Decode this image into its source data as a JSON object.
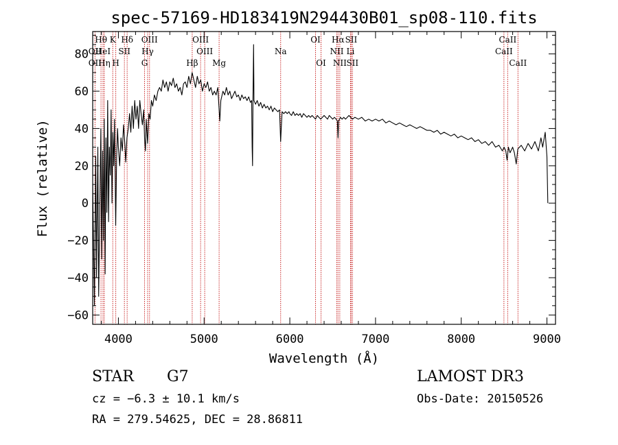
{
  "chart_data": {
    "type": "line",
    "title": "spec-57169-HD183419N294430B01_sp08-110.fits",
    "xlabel": "Wavelength (Å)",
    "ylabel": "Flux (relative)",
    "xlim": [
      3700,
      9100
    ],
    "ylim": [
      -65,
      92
    ],
    "xticks": [
      4000,
      5000,
      6000,
      7000,
      8000,
      9000
    ],
    "yticks": [
      -60,
      -40,
      -20,
      0,
      20,
      40,
      60,
      80
    ],
    "x_minor_step": 200,
    "y_minor_step": 5,
    "line_color": "#000000",
    "marker_color": "#c00000",
    "series": [
      {
        "name": "flux",
        "points": [
          [
            3700,
            10
          ],
          [
            3720,
            -55
          ],
          [
            3735,
            25
          ],
          [
            3745,
            -40
          ],
          [
            3760,
            30
          ],
          [
            3770,
            -50
          ],
          [
            3785,
            5
          ],
          [
            3795,
            40
          ],
          [
            3805,
            -30
          ],
          [
            3815,
            28
          ],
          [
            3825,
            -20
          ],
          [
            3835,
            45
          ],
          [
            3845,
            -38
          ],
          [
            3855,
            35
          ],
          [
            3865,
            -5
          ],
          [
            3875,
            55
          ],
          [
            3885,
            -10
          ],
          [
            3895,
            30
          ],
          [
            3905,
            15
          ],
          [
            3915,
            50
          ],
          [
            3925,
            0
          ],
          [
            3935,
            38
          ],
          [
            3945,
            20
          ],
          [
            3955,
            45
          ],
          [
            3968,
            -12
          ],
          [
            3980,
            25
          ],
          [
            3990,
            40
          ],
          [
            4000,
            30
          ],
          [
            4015,
            20
          ],
          [
            4030,
            35
          ],
          [
            4045,
            28
          ],
          [
            4060,
            42
          ],
          [
            4075,
            32
          ],
          [
            4085,
            22
          ],
          [
            4100,
            35
          ],
          [
            4115,
            40
          ],
          [
            4130,
            48
          ],
          [
            4145,
            38
          ],
          [
            4160,
            52
          ],
          [
            4175,
            40
          ],
          [
            4190,
            55
          ],
          [
            4205,
            45
          ],
          [
            4220,
            52
          ],
          [
            4235,
            40
          ],
          [
            4250,
            55
          ],
          [
            4265,
            48
          ],
          [
            4280,
            42
          ],
          [
            4295,
            50
          ],
          [
            4305,
            35
          ],
          [
            4315,
            28
          ],
          [
            4325,
            45
          ],
          [
            4340,
            32
          ],
          [
            4355,
            48
          ],
          [
            4370,
            45
          ],
          [
            4385,
            55
          ],
          [
            4400,
            52
          ],
          [
            4420,
            58
          ],
          [
            4440,
            55
          ],
          [
            4460,
            60
          ],
          [
            4480,
            62
          ],
          [
            4500,
            60
          ],
          [
            4520,
            66
          ],
          [
            4540,
            62
          ],
          [
            4560,
            65
          ],
          [
            4580,
            60
          ],
          [
            4600,
            65
          ],
          [
            4620,
            63
          ],
          [
            4640,
            67
          ],
          [
            4660,
            62
          ],
          [
            4680,
            64
          ],
          [
            4700,
            60
          ],
          [
            4720,
            62
          ],
          [
            4740,
            58
          ],
          [
            4760,
            64
          ],
          [
            4780,
            65
          ],
          [
            4800,
            62
          ],
          [
            4820,
            68
          ],
          [
            4840,
            64
          ],
          [
            4860,
            70
          ],
          [
            4880,
            66
          ],
          [
            4900,
            62
          ],
          [
            4920,
            68
          ],
          [
            4940,
            64
          ],
          [
            4960,
            66
          ],
          [
            4980,
            60
          ],
          [
            5000,
            64
          ],
          [
            5020,
            62
          ],
          [
            5040,
            65
          ],
          [
            5060,
            60
          ],
          [
            5080,
            62
          ],
          [
            5100,
            58
          ],
          [
            5120,
            60
          ],
          [
            5140,
            58
          ],
          [
            5160,
            62
          ],
          [
            5175,
            50
          ],
          [
            5183,
            44
          ],
          [
            5195,
            55
          ],
          [
            5220,
            60
          ],
          [
            5240,
            58
          ],
          [
            5260,
            62
          ],
          [
            5280,
            58
          ],
          [
            5300,
            60
          ],
          [
            5320,
            56
          ],
          [
            5340,
            58
          ],
          [
            5360,
            60
          ],
          [
            5380,
            57
          ],
          [
            5400,
            58
          ],
          [
            5420,
            55
          ],
          [
            5440,
            58
          ],
          [
            5460,
            56
          ],
          [
            5480,
            57
          ],
          [
            5500,
            55
          ],
          [
            5520,
            57
          ],
          [
            5540,
            54
          ],
          [
            5555,
            55
          ],
          [
            5560,
            30
          ],
          [
            5565,
            20
          ],
          [
            5570,
            55
          ],
          [
            5577,
            85
          ],
          [
            5582,
            55
          ],
          [
            5600,
            53
          ],
          [
            5620,
            55
          ],
          [
            5640,
            52
          ],
          [
            5660,
            54
          ],
          [
            5680,
            51
          ],
          [
            5700,
            53
          ],
          [
            5720,
            51
          ],
          [
            5740,
            52
          ],
          [
            5760,
            50
          ],
          [
            5780,
            52
          ],
          [
            5800,
            49
          ],
          [
            5820,
            51
          ],
          [
            5840,
            50
          ],
          [
            5860,
            49
          ],
          [
            5880,
            50
          ],
          [
            5893,
            33
          ],
          [
            5900,
            40
          ],
          [
            5910,
            49
          ],
          [
            5930,
            48
          ],
          [
            5950,
            49
          ],
          [
            5970,
            48
          ],
          [
            5990,
            49
          ],
          [
            6000,
            48
          ],
          [
            6020,
            47
          ],
          [
            6040,
            49
          ],
          [
            6060,
            47
          ],
          [
            6080,
            48
          ],
          [
            6100,
            47
          ],
          [
            6120,
            48
          ],
          [
            6140,
            46
          ],
          [
            6160,
            48
          ],
          [
            6180,
            47
          ],
          [
            6200,
            46
          ],
          [
            6220,
            47
          ],
          [
            6240,
            46
          ],
          [
            6260,
            47
          ],
          [
            6280,
            46
          ],
          [
            6300,
            45
          ],
          [
            6320,
            47
          ],
          [
            6340,
            46
          ],
          [
            6360,
            45
          ],
          [
            6380,
            46
          ],
          [
            6400,
            47
          ],
          [
            6420,
            46
          ],
          [
            6440,
            45
          ],
          [
            6460,
            47
          ],
          [
            6480,
            46
          ],
          [
            6500,
            45
          ],
          [
            6520,
            46
          ],
          [
            6540,
            45
          ],
          [
            6555,
            44
          ],
          [
            6563,
            35
          ],
          [
            6570,
            44
          ],
          [
            6590,
            46
          ],
          [
            6610,
            45
          ],
          [
            6630,
            46
          ],
          [
            6650,
            45
          ],
          [
            6670,
            46
          ],
          [
            6690,
            47
          ],
          [
            6710,
            46
          ],
          [
            6730,
            45
          ],
          [
            6760,
            46
          ],
          [
            6800,
            45
          ],
          [
            6840,
            46
          ],
          [
            6880,
            44
          ],
          [
            6920,
            45
          ],
          [
            6960,
            44
          ],
          [
            7000,
            45
          ],
          [
            7040,
            44
          ],
          [
            7080,
            45
          ],
          [
            7120,
            43
          ],
          [
            7160,
            44
          ],
          [
            7200,
            43
          ],
          [
            7240,
            42
          ],
          [
            7280,
            43
          ],
          [
            7320,
            42
          ],
          [
            7360,
            41
          ],
          [
            7400,
            42
          ],
          [
            7440,
            41
          ],
          [
            7480,
            40
          ],
          [
            7520,
            41
          ],
          [
            7560,
            40
          ],
          [
            7600,
            39
          ],
          [
            7640,
            39
          ],
          [
            7680,
            38
          ],
          [
            7720,
            39
          ],
          [
            7760,
            37
          ],
          [
            7800,
            38
          ],
          [
            7840,
            37
          ],
          [
            7880,
            36
          ],
          [
            7920,
            37
          ],
          [
            7960,
            35
          ],
          [
            8000,
            36
          ],
          [
            8040,
            35
          ],
          [
            8080,
            34
          ],
          [
            8120,
            35
          ],
          [
            8160,
            33
          ],
          [
            8200,
            34
          ],
          [
            8240,
            32
          ],
          [
            8280,
            33
          ],
          [
            8320,
            31
          ],
          [
            8360,
            33
          ],
          [
            8400,
            30
          ],
          [
            8440,
            31
          ],
          [
            8480,
            28
          ],
          [
            8500,
            30
          ],
          [
            8520,
            28
          ],
          [
            8535,
            23
          ],
          [
            8550,
            30
          ],
          [
            8570,
            27
          ],
          [
            8600,
            30
          ],
          [
            8620,
            27
          ],
          [
            8642,
            21
          ],
          [
            8660,
            29
          ],
          [
            8700,
            31
          ],
          [
            8740,
            28
          ],
          [
            8780,
            32
          ],
          [
            8820,
            29
          ],
          [
            8860,
            33
          ],
          [
            8900,
            28
          ],
          [
            8930,
            35
          ],
          [
            8950,
            30
          ],
          [
            8980,
            38
          ],
          [
            9000,
            25
          ],
          [
            9010,
            0
          ]
        ]
      }
    ],
    "line_markers": [
      {
        "label": "Hθ",
        "x": 3797,
        "row": 0
      },
      {
        "label": "OII",
        "x": 3727,
        "row": 1
      },
      {
        "label": "HeI",
        "x": 3820,
        "row": 1
      },
      {
        "label": "OII",
        "x": 3727,
        "row": 2
      },
      {
        "label": "Hη",
        "x": 3835,
        "row": 2
      },
      {
        "label": "K",
        "x": 3934,
        "row": 0
      },
      {
        "label": "H",
        "x": 3969,
        "row": 2
      },
      {
        "label": "SII",
        "x": 4070,
        "row": 1
      },
      {
        "label": "Hδ",
        "x": 4102,
        "row": 0
      },
      {
        "label": "OIII",
        "x": 4363,
        "row": 0
      },
      {
        "label": "Hγ",
        "x": 4341,
        "row": 1
      },
      {
        "label": "G",
        "x": 4305,
        "row": 2
      },
      {
        "label": "Hβ",
        "x": 4861,
        "row": 2
      },
      {
        "label": "OIII",
        "x": 4959,
        "row": 0
      },
      {
        "label": "OIII",
        "x": 5007,
        "row": 1
      },
      {
        "label": "Mg",
        "x": 5175,
        "row": 2
      },
      {
        "label": "Na",
        "x": 5893,
        "row": 1
      },
      {
        "label": "OI",
        "x": 6300,
        "row": 0
      },
      {
        "label": "OI",
        "x": 6364,
        "row": 2
      },
      {
        "label": "Hα",
        "x": 6563,
        "row": 0
      },
      {
        "label": "NII",
        "x": 6548,
        "row": 1
      },
      {
        "label": "NII",
        "x": 6583,
        "row": 2
      },
      {
        "label": "SII",
        "x": 6716,
        "row": 0
      },
      {
        "label": "Li",
        "x": 6708,
        "row": 1
      },
      {
        "label": "SII",
        "x": 6731,
        "row": 2
      },
      {
        "label": "CaII",
        "x": 8542,
        "row": 0
      },
      {
        "label": "CaII",
        "x": 8498,
        "row": 1
      },
      {
        "label": "CaII",
        "x": 8662,
        "row": 2
      }
    ]
  },
  "footer": {
    "object_type": "STAR",
    "subclass": "G7",
    "survey": "LAMOST DR3",
    "redshift": "cz = −6.3 ± 10.1 km/s",
    "obs_date": "Obs-Date: 20150526",
    "coords": "RA = 279.54625, DEC =  28.86811"
  }
}
